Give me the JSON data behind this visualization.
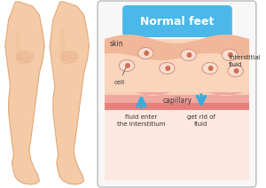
{
  "bg_color": "#ffffff",
  "title_text": "Normal feet",
  "title_bg": "#4ab8e8",
  "title_color": "#ffffff",
  "arrow_color": "#3aabdd",
  "text_color": "#333333",
  "label_skin": "skin",
  "label_cell": "cell",
  "label_interstitial": "Interstitial\nfluid",
  "label_capillary": "capillary",
  "label_enter": "fluid enter\nthe interstitium",
  "label_getrid": "get rid of\nfluid",
  "leg_color": "#f5cba7",
  "leg_outline": "#e0a87a",
  "leg_shadow": "#e8b88a",
  "knee_color": "#eab590",
  "skin_wave_color": "#f0b898",
  "interstitial_color": "#f9d5bc",
  "capillary_color": "#e8807a",
  "capillary_light": "#f0a8a0",
  "below_color": "#fce8e0",
  "cell_face": "#f8ddd0",
  "cell_edge": "#d49080",
  "cell_dot": "#d07050",
  "panel_face": "#f7f7f7",
  "panel_edge": "#bbbbbb"
}
